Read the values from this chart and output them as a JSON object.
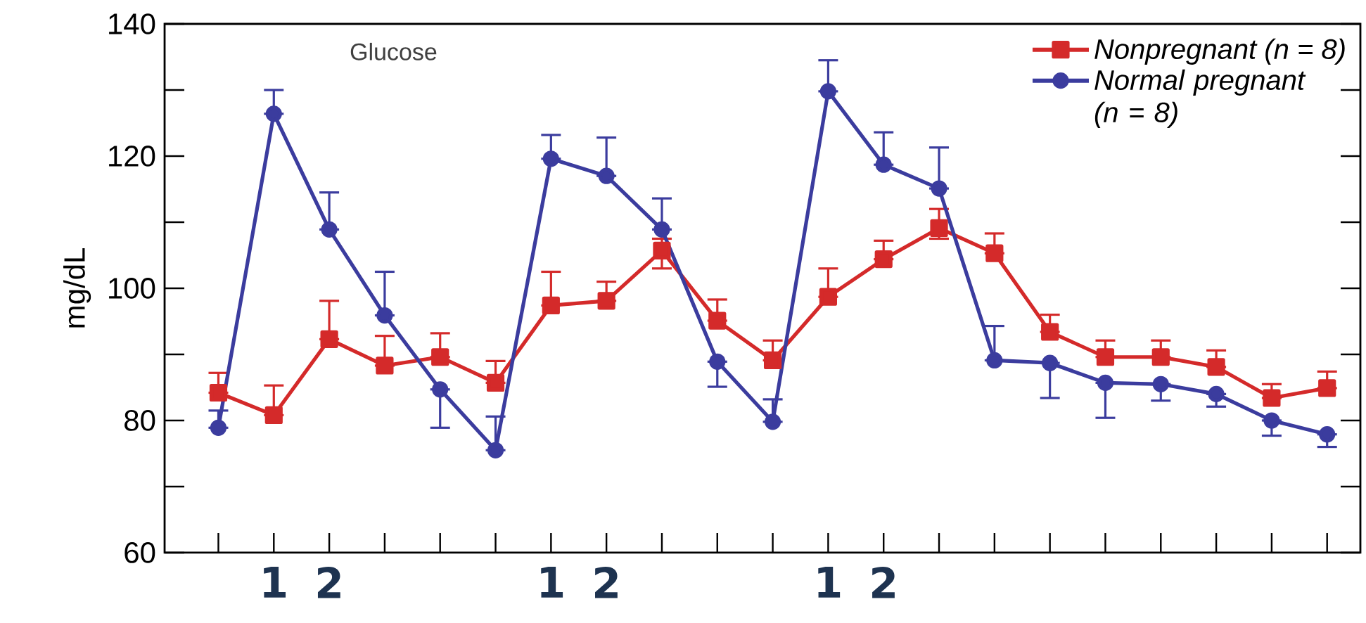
{
  "chart_data": {
    "type": "line",
    "ylabel": "mg/dL",
    "annotations": [
      "Glucose"
    ],
    "categories": [
      null,
      "1",
      "2",
      null,
      null,
      null,
      "1",
      "2",
      null,
      null,
      null,
      "1",
      "2",
      null,
      null,
      null,
      null,
      null,
      null,
      null,
      null
    ],
    "ylim": [
      60,
      140
    ],
    "yticks": [
      60,
      80,
      100,
      120,
      140
    ],
    "legend": "top right",
    "line_style": "solid",
    "series": [
      {
        "name": "*Nonpregnant (n = 8)*",
        "color": "#d42a2a",
        "marker": "square",
        "values": [
          84.2,
          80.8,
          92.3,
          88.3,
          89.6,
          85.7,
          97.4,
          98.1,
          105.7,
          95.1,
          89.1,
          98.7,
          104.4,
          109.1,
          105.3,
          93.4,
          89.6,
          89.6,
          88.1,
          83.4,
          84.9
        ],
        "errors": [
          [
            84.2,
            87.2
          ],
          [
            80.8,
            85.3
          ],
          [
            92.3,
            98.1
          ],
          [
            88.3,
            92.8
          ],
          [
            89.6,
            93.2
          ],
          [
            85.7,
            89
          ],
          [
            97.4,
            102.5
          ],
          [
            98.1,
            101
          ],
          [
            103,
            107.5
          ],
          [
            95.1,
            98.3
          ],
          [
            89.1,
            92.1
          ],
          [
            98.7,
            103
          ],
          [
            104.4,
            107.2
          ],
          [
            107.5,
            112
          ],
          [
            105.3,
            108.3
          ],
          [
            93.4,
            96
          ],
          [
            89.6,
            92.1
          ],
          [
            89.6,
            92.1
          ],
          [
            88.1,
            90.6
          ],
          [
            83.4,
            85.5
          ],
          [
            84.9,
            87.4
          ]
        ]
      },
      {
        "name": "*Normal pregnant (n = 8)*",
        "color": "#3b3c9e",
        "marker": "circle",
        "values": [
          78.9,
          126.4,
          108.9,
          95.9,
          84.7,
          75.5,
          119.6,
          117,
          108.9,
          88.9,
          79.8,
          129.8,
          118.7,
          115.1,
          89.1,
          88.7,
          85.7,
          85.5,
          84,
          80,
          77.9
        ],
        "errors": [
          [
            78.9,
            81.5
          ],
          [
            126.4,
            130
          ],
          [
            108.9,
            114.5
          ],
          [
            95.9,
            102.5
          ],
          [
            78.9,
            84.7
          ],
          [
            75.5,
            80.6
          ],
          [
            119.6,
            123.2
          ],
          [
            117,
            122.8
          ],
          [
            108.9,
            113.6
          ],
          [
            85.1,
            88.9
          ],
          [
            79.8,
            83.2
          ],
          [
            129.8,
            134.5
          ],
          [
            118.7,
            123.6
          ],
          [
            115.1,
            121.3
          ],
          [
            89.1,
            94.3
          ],
          [
            83.4,
            88.7
          ],
          [
            80.4,
            85.7
          ],
          [
            83,
            85.5
          ],
          [
            82.1,
            84
          ],
          [
            77.7,
            80
          ],
          [
            76,
            77.9
          ]
        ]
      }
    ]
  }
}
